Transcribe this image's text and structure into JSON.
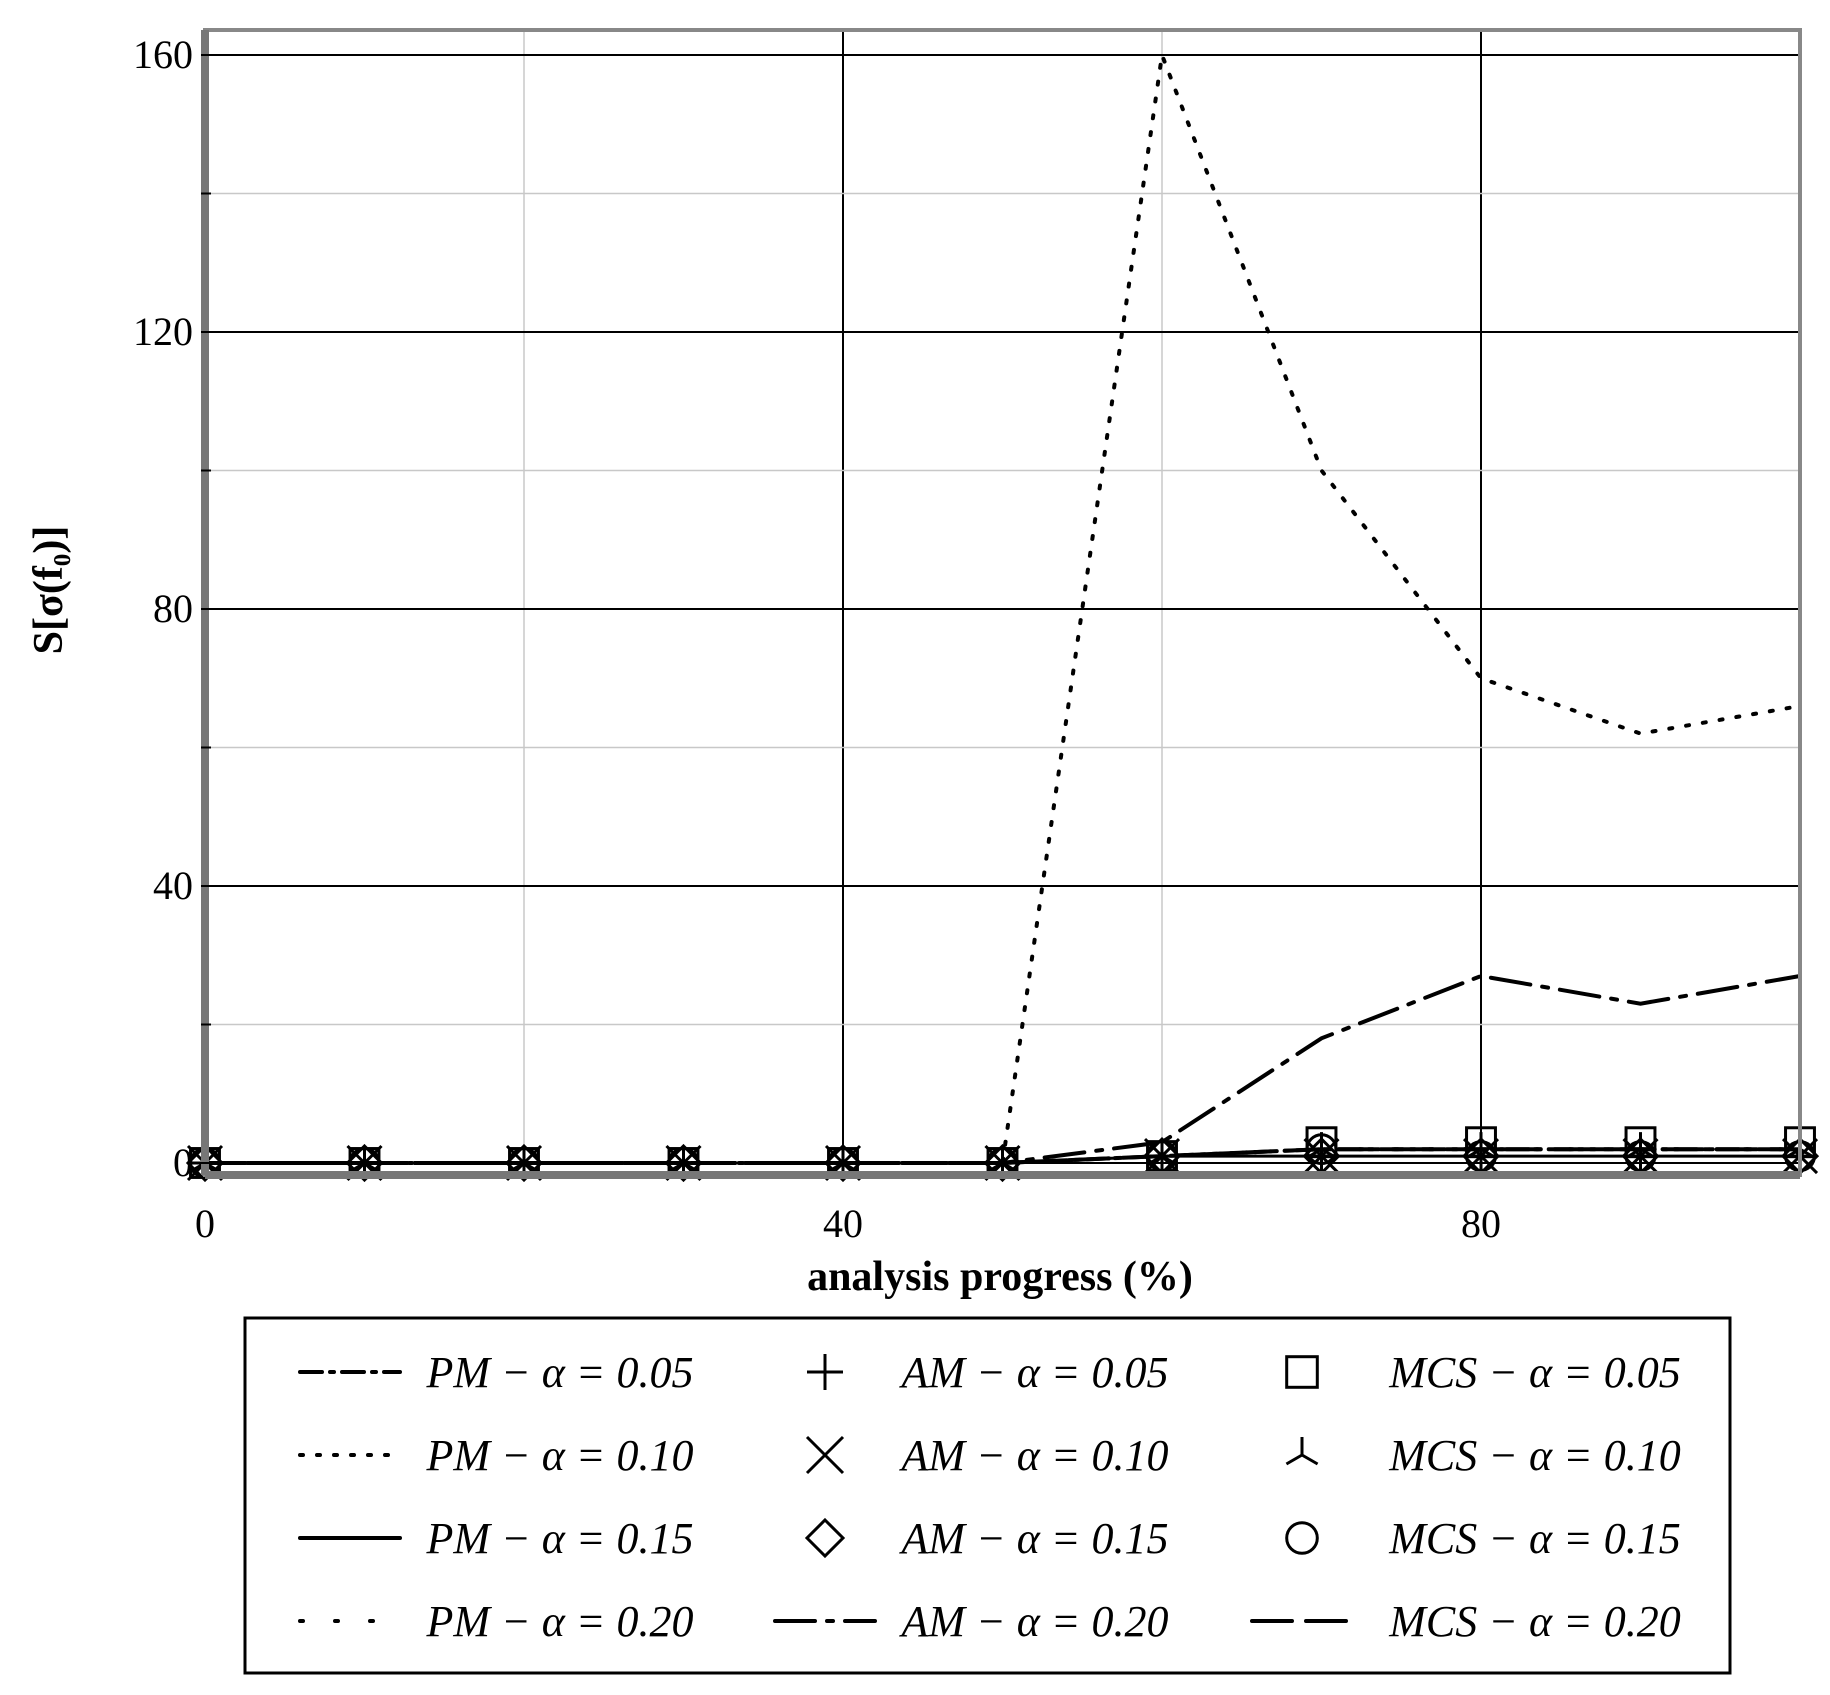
{
  "chart_data": {
    "type": "line",
    "xlabel": "analysis progress (%)",
    "ylabel": "S[σ(f₀)]",
    "xlim": [
      0,
      100
    ],
    "ylim": [
      0,
      160
    ],
    "xticks": [
      0,
      40,
      80
    ],
    "yticks": [
      0,
      40,
      80,
      120,
      160
    ],
    "grid": true,
    "legend_position": "bottom",
    "x": [
      0,
      10,
      20,
      30,
      40,
      50,
      60,
      70,
      80,
      90,
      100
    ],
    "series": [
      {
        "name": "PM − α = 0.05",
        "style": "dashdot",
        "values": [
          0,
          0,
          0,
          0,
          0,
          0,
          1,
          2,
          2,
          2,
          2
        ]
      },
      {
        "name": "PM − α = 0.10",
        "style": "dot",
        "values": [
          0,
          0,
          0,
          0,
          0,
          0,
          160,
          100,
          70,
          62,
          66
        ]
      },
      {
        "name": "PM − α = 0.15",
        "style": "solid",
        "values": [
          0,
          0,
          0,
          0,
          0,
          0,
          1,
          1,
          1,
          1,
          1
        ]
      },
      {
        "name": "PM − α = 0.20",
        "style": "sparse-dot",
        "values": [
          0,
          0,
          0,
          0,
          0,
          0,
          1,
          2,
          2,
          2,
          2
        ]
      },
      {
        "name": "AM − α = 0.05",
        "style": "marker-plus",
        "values": [
          0,
          0,
          0,
          0,
          0,
          0,
          1,
          1,
          1,
          1,
          1
        ]
      },
      {
        "name": "AM − α = 0.10",
        "style": "marker-x",
        "values": [
          0,
          0,
          0,
          0,
          0,
          0,
          1,
          1,
          1,
          1,
          1
        ]
      },
      {
        "name": "AM − α = 0.15",
        "style": "marker-diamond",
        "values": [
          0,
          0,
          0,
          0,
          0,
          0,
          1,
          1,
          1,
          1,
          1
        ]
      },
      {
        "name": "AM − α = 0.20",
        "style": "longdash-dot",
        "values": [
          0,
          0,
          0,
          0,
          0,
          0,
          3,
          18,
          27,
          23,
          27
        ]
      },
      {
        "name": "MCS − α = 0.05",
        "style": "marker-square",
        "values": [
          0,
          0,
          0,
          0,
          0,
          0,
          1,
          3,
          3,
          3,
          3
        ]
      },
      {
        "name": "MCS − α = 0.10",
        "style": "marker-star",
        "values": [
          0,
          0,
          0,
          0,
          0,
          0,
          1,
          2,
          2,
          2,
          2
        ]
      },
      {
        "name": "MCS − α = 0.15",
        "style": "marker-circle",
        "values": [
          0,
          0,
          0,
          0,
          0,
          0,
          1,
          2,
          1,
          1,
          1
        ]
      },
      {
        "name": "MCS − α = 0.20",
        "style": "longdash",
        "values": [
          0,
          0,
          0,
          0,
          0,
          0,
          1,
          2,
          2,
          2,
          2
        ]
      }
    ]
  }
}
